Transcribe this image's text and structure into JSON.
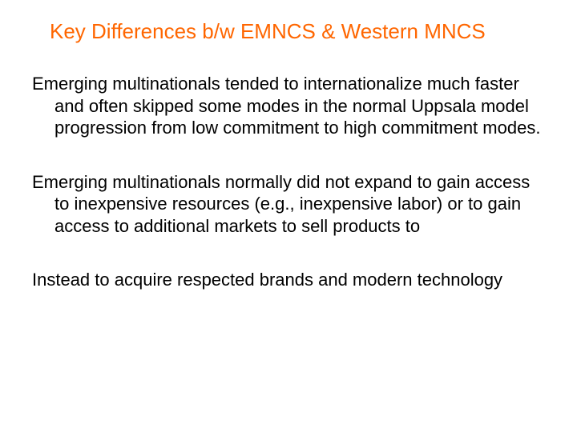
{
  "slide": {
    "title": "Key Differences b/w EMNCS & Western MNCS",
    "title_color": "#ff6600",
    "title_fontsize": 26,
    "body_color": "#000000",
    "body_fontsize": 22,
    "background_color": "#ffffff",
    "paragraphs": [
      "Emerging multinationals tended to internationalize much faster and often skipped some modes in the normal Uppsala model progression from low commitment to high commitment modes.",
      "Emerging multinationals normally did not expand to gain access to inexpensive resources (e.g., inexpensive labor) or to gain access to additional markets to sell products to",
      "Instead to acquire respected brands and modern technology"
    ]
  }
}
